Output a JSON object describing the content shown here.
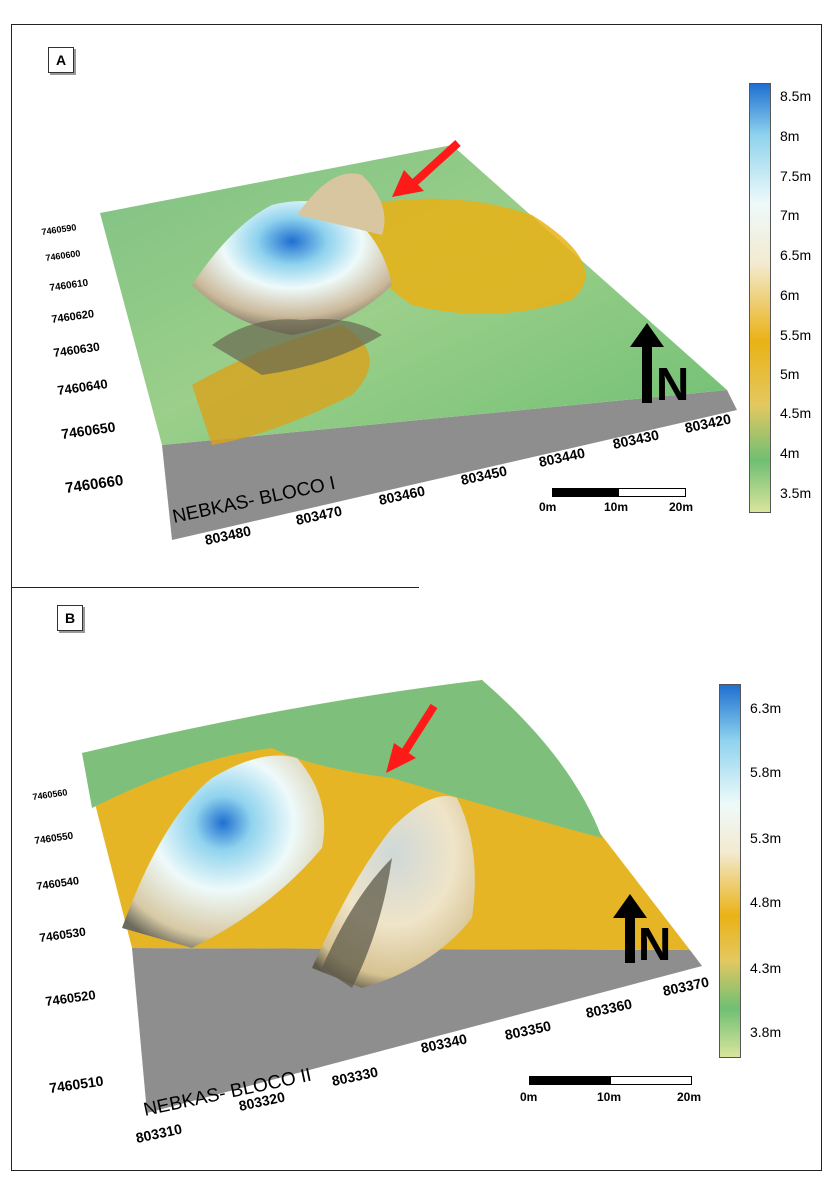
{
  "panels": [
    {
      "letter": "A",
      "block_label": "NEBKAS- BLOCO I",
      "north_label": "N",
      "legend": [
        "8.5m",
        "8m",
        "7.5m",
        "7m",
        "6.5m",
        "6m",
        "5.5m",
        "5m",
        "4.5m",
        "4m",
        "3.5m"
      ],
      "x_ticks": [
        "803480",
        "803470",
        "803460",
        "803450",
        "803440",
        "803430",
        "803420"
      ],
      "y_ticks": [
        "7460590",
        "7460600",
        "7460610",
        "7460620",
        "7460630",
        "7460640",
        "7460650",
        "7460660"
      ],
      "scale": [
        "0m",
        "10m",
        "20m"
      ]
    },
    {
      "letter": "B",
      "block_label": "NEBKAS- BLOCO II",
      "north_label": "N",
      "legend": [
        "6.3m",
        "5.8m",
        "5.3m",
        "4.8m",
        "4.3m",
        "3.8m"
      ],
      "x_ticks": [
        "803310",
        "803320",
        "803330",
        "803340",
        "803350",
        "803360",
        "803370"
      ],
      "y_ticks": [
        "7460560",
        "7460550",
        "7460540",
        "7460530",
        "7460520",
        "7460510"
      ],
      "scale": [
        "0m",
        "10m",
        "20m"
      ]
    }
  ],
  "colors": {
    "low": "#d9e59c",
    "green": "#6fbf73",
    "yellow": "#e9b215",
    "cream": "#f3ead0",
    "white": "#eefafa",
    "cyan": "#8fd3ee",
    "blue": "#1f6fd1",
    "base_gray": "#8e8e8e",
    "arrow_red": "#ff1a1a"
  }
}
